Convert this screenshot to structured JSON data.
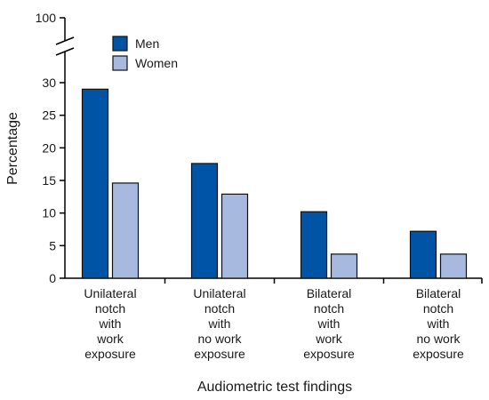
{
  "chart_data": {
    "type": "bar",
    "title": "",
    "xlabel": "Audiometric test findings",
    "ylabel": "Percentage",
    "ylim": [
      0,
      30
    ],
    "y_break_label": "100",
    "yticks": [
      0,
      5,
      10,
      15,
      20,
      25,
      30
    ],
    "categories": [
      [
        "Unilateral",
        "notch",
        "with",
        "work",
        "exposure"
      ],
      [
        "Unilateral",
        "notch",
        "with",
        "no work",
        "exposure"
      ],
      [
        "Bilateral",
        "notch",
        "with",
        "work",
        "exposure"
      ],
      [
        "Bilateral",
        "notch",
        "with",
        "no work",
        "exposure"
      ]
    ],
    "series": [
      {
        "name": "Men",
        "color": "#0054a6",
        "values": [
          29.0,
          17.6,
          10.2,
          7.2
        ]
      },
      {
        "name": "Women",
        "color": "#a7b9df",
        "values": [
          14.6,
          12.9,
          3.7,
          3.7
        ]
      }
    ],
    "legend_position": "top-left",
    "grid": false
  }
}
